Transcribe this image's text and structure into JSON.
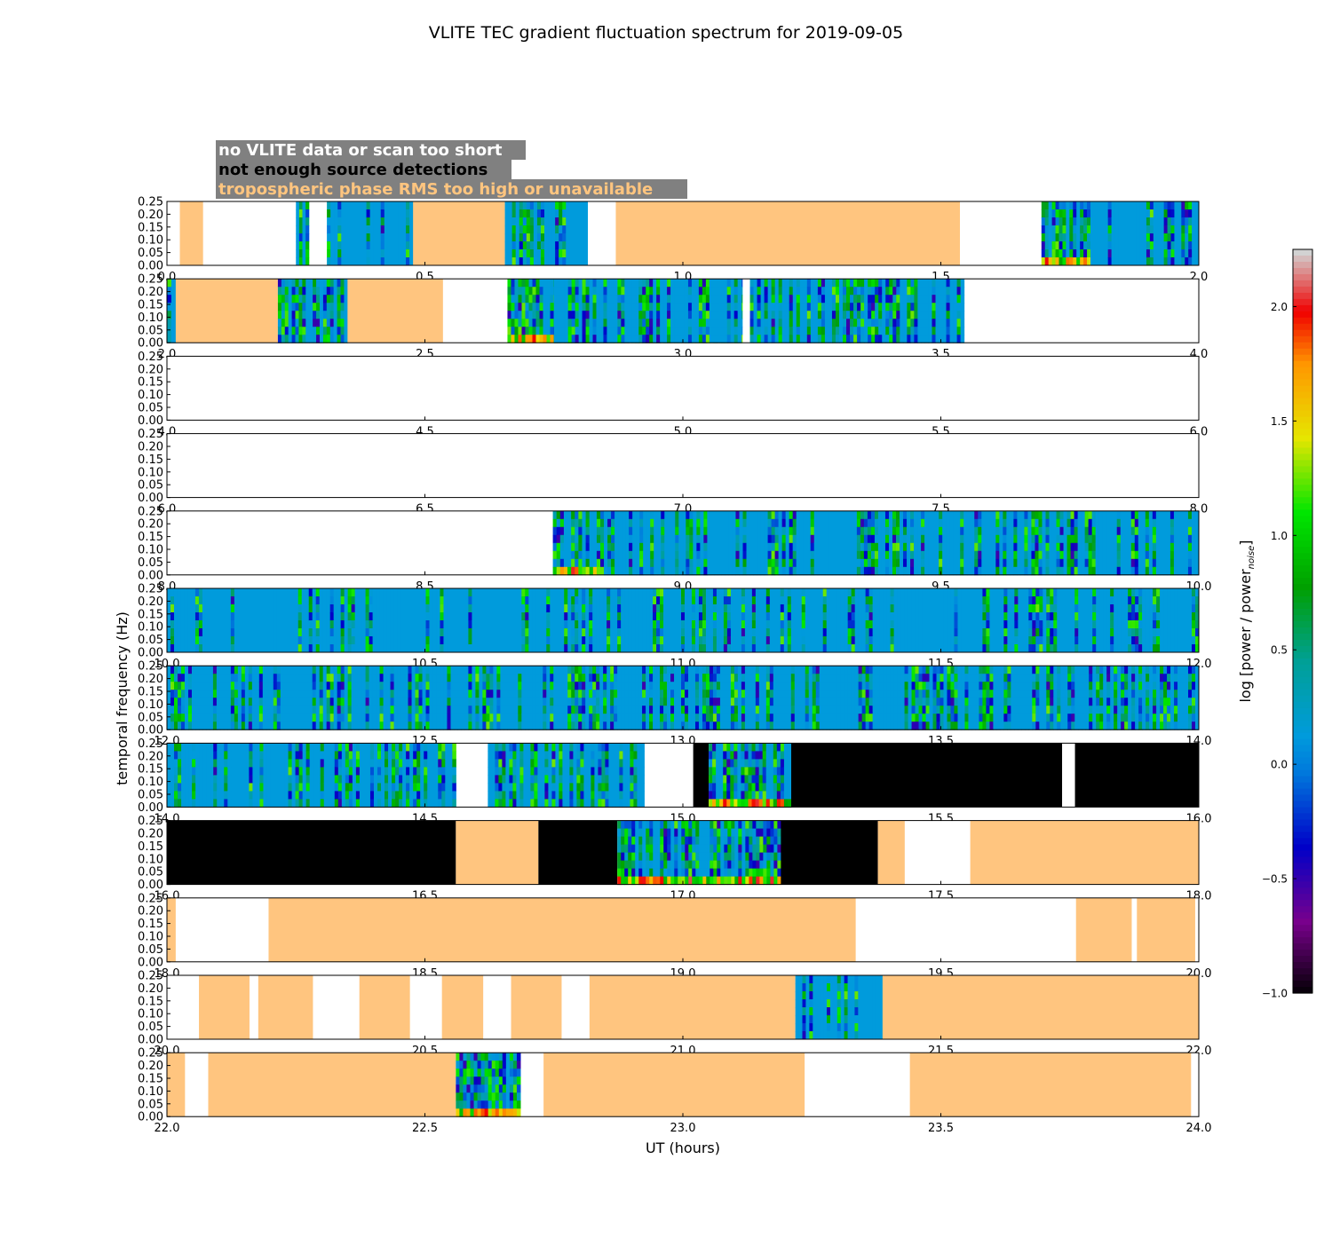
{
  "chart_data": {
    "type": "heatmap",
    "title": "VLITE TEC gradient fluctuation spectrum for 2019-09-05",
    "xlabel": "UT (hours)",
    "ylabel": "temporal frequency (Hz)",
    "colorbar": {
      "label_main": "log [power / power",
      "label_sub": "noise",
      "label_end": "]",
      "range": [
        -1.0,
        2.25
      ],
      "ticks": [
        "−1.0",
        "−0.5",
        "0.0",
        "0.5",
        "1.0",
        "1.5",
        "2.0"
      ],
      "tick_values": [
        -1.0,
        -0.5,
        0.0,
        0.5,
        1.0,
        1.5,
        2.0
      ],
      "colormap": "nipy_spectral"
    },
    "legend": [
      {
        "text": "no VLITE data or scan too short",
        "color": "#ffffff"
      },
      {
        "text": "not enough source detections",
        "color": "#000000"
      },
      {
        "text": "tropospheric phase RMS too high or unavailable",
        "color": "#ffc57f"
      }
    ],
    "legend_background": "#808080",
    "status_colors": {
      "no_data": "#ffffff",
      "few_detections": "#000000",
      "troposphere": "#ffc57f"
    },
    "ylim": [
      0.0,
      0.25
    ],
    "y_ticks": [
      "0.00",
      "0.05",
      "0.10",
      "0.15",
      "0.20",
      "0.25"
    ],
    "panels": [
      {
        "x_ticks": [
          "0.0",
          "0.5",
          "1.0",
          "1.5",
          "2.0"
        ],
        "xlim": [
          0,
          2
        ],
        "segments": [
          {
            "start": 0.025,
            "end": 0.07,
            "state": "troposphere"
          },
          {
            "start": 0.25,
            "end": 0.275,
            "state": "data",
            "activity": 0.5
          },
          {
            "start": 0.31,
            "end": 0.477,
            "state": "data",
            "activity": 0.3
          },
          {
            "start": 0.477,
            "end": 0.655,
            "state": "troposphere"
          },
          {
            "start": 0.655,
            "end": 0.815,
            "state": "data",
            "activity": 0.25
          },
          {
            "start": 0.87,
            "end": 1.537,
            "state": "troposphere"
          },
          {
            "start": 1.695,
            "end": 1.79,
            "state": "data",
            "activity": 0.9
          },
          {
            "start": 1.79,
            "end": 2.0,
            "state": "data",
            "activity": 0.5
          }
        ]
      },
      {
        "x_ticks": [
          "2.0",
          "2.5",
          "3.0",
          "3.5",
          "4.0"
        ],
        "xlim": [
          2,
          4
        ],
        "segments": [
          {
            "start": 2.0,
            "end": 2.017,
            "state": "data",
            "activity": 0.5
          },
          {
            "start": 2.017,
            "end": 2.215,
            "state": "troposphere"
          },
          {
            "start": 2.215,
            "end": 2.35,
            "state": "data",
            "activity": 0.55
          },
          {
            "start": 2.35,
            "end": 2.535,
            "state": "troposphere"
          },
          {
            "start": 2.66,
            "end": 3.115,
            "state": "data",
            "activity": 0.75
          },
          {
            "start": 3.115,
            "end": 3.113,
            "state": "data",
            "activity": 0.3
          },
          {
            "start": 2.75,
            "end": 3.113,
            "state": "data",
            "activity": 0.35
          },
          {
            "start": 3.13,
            "end": 3.545,
            "state": "data",
            "activity": 0.55
          }
        ]
      },
      {
        "x_ticks": [
          "4.0",
          "4.5",
          "5.0",
          "5.5",
          "6.0"
        ],
        "xlim": [
          4,
          6
        ],
        "segments": []
      },
      {
        "x_ticks": [
          "6.0",
          "6.5",
          "7.0",
          "7.5",
          "8.0"
        ],
        "xlim": [
          6,
          8
        ],
        "segments": []
      },
      {
        "x_ticks": [
          "8.0",
          "8.5",
          "9.0",
          "9.5",
          "10.0"
        ],
        "xlim": [
          8,
          10
        ],
        "segments": [
          {
            "start": 8.748,
            "end": 8.84,
            "state": "data",
            "activity": 0.8
          },
          {
            "start": 8.84,
            "end": 10.0,
            "state": "data",
            "activity": 0.3
          }
        ]
      },
      {
        "x_ticks": [
          "10.0",
          "10.5",
          "11.0",
          "11.5",
          "12.0"
        ],
        "xlim": [
          10,
          12
        ],
        "segments": [
          {
            "start": 10.0,
            "end": 12.0,
            "state": "data",
            "activity": 0.25
          }
        ]
      },
      {
        "x_ticks": [
          "12.0",
          "12.5",
          "13.0",
          "13.5",
          "14.0"
        ],
        "xlim": [
          12,
          14
        ],
        "segments": [
          {
            "start": 12.0,
            "end": 14.0,
            "state": "data",
            "activity": 0.35
          }
        ]
      },
      {
        "x_ticks": [
          "14.0",
          "14.5",
          "15.0",
          "15.5",
          "16.0"
        ],
        "xlim": [
          14,
          16
        ],
        "segments": [
          {
            "start": 14.0,
            "end": 14.56,
            "state": "data",
            "activity": 0.3
          },
          {
            "start": 14.622,
            "end": 14.925,
            "state": "data",
            "activity": 0.4
          },
          {
            "start": 15.02,
            "end": 15.05,
            "state": "few_detections"
          },
          {
            "start": 15.05,
            "end": 15.21,
            "state": "data",
            "activity": 0.8
          },
          {
            "start": 15.21,
            "end": 15.735,
            "state": "few_detections"
          },
          {
            "start": 15.76,
            "end": 16.0,
            "state": "few_detections"
          }
        ]
      },
      {
        "x_ticks": [
          "16.0",
          "16.5",
          "17.0",
          "17.5",
          "18.0"
        ],
        "xlim": [
          16,
          18
        ],
        "segments": [
          {
            "start": 16.0,
            "end": 16.56,
            "state": "few_detections"
          },
          {
            "start": 16.56,
            "end": 16.72,
            "state": "troposphere"
          },
          {
            "start": 16.72,
            "end": 16.873,
            "state": "few_detections"
          },
          {
            "start": 16.873,
            "end": 17.19,
            "state": "data",
            "activity": 0.85
          },
          {
            "start": 17.19,
            "end": 17.378,
            "state": "few_detections"
          },
          {
            "start": 17.378,
            "end": 17.43,
            "state": "troposphere"
          },
          {
            "start": 17.557,
            "end": 18.0,
            "state": "troposphere"
          }
        ]
      },
      {
        "x_ticks": [
          "18.0",
          "18.5",
          "19.0",
          "19.5",
          "20.0"
        ],
        "xlim": [
          18,
          20
        ],
        "segments": [
          {
            "start": 18.0,
            "end": 18.017,
            "state": "troposphere"
          },
          {
            "start": 18.197,
            "end": 19.335,
            "state": "troposphere"
          },
          {
            "start": 19.762,
            "end": 19.87,
            "state": "troposphere"
          },
          {
            "start": 19.88,
            "end": 19.993,
            "state": "troposphere"
          }
        ]
      },
      {
        "x_ticks": [
          "20.0",
          "20.5",
          "21.0",
          "21.5",
          "22.0"
        ],
        "xlim": [
          20,
          22
        ],
        "segments": [
          {
            "start": 20.062,
            "end": 20.16,
            "state": "troposphere"
          },
          {
            "start": 20.177,
            "end": 20.283,
            "state": "troposphere"
          },
          {
            "start": 20.373,
            "end": 20.471,
            "state": "troposphere"
          },
          {
            "start": 20.533,
            "end": 20.613,
            "state": "troposphere"
          },
          {
            "start": 20.667,
            "end": 20.765,
            "state": "troposphere"
          },
          {
            "start": 20.819,
            "end": 21.218,
            "state": "troposphere"
          },
          {
            "start": 21.218,
            "end": 21.387,
            "state": "data",
            "activity": 0.3
          },
          {
            "start": 21.387,
            "end": 22.0,
            "state": "troposphere"
          }
        ]
      },
      {
        "x_ticks": [
          "22.0",
          "22.5",
          "23.0",
          "23.5",
          "24.0"
        ],
        "xlim": [
          22,
          24
        ],
        "segments": [
          {
            "start": 22.0,
            "end": 22.035,
            "state": "troposphere"
          },
          {
            "start": 22.08,
            "end": 22.56,
            "state": "troposphere"
          },
          {
            "start": 22.56,
            "end": 22.685,
            "state": "data",
            "activity": 0.9
          },
          {
            "start": 22.73,
            "end": 23.236,
            "state": "troposphere"
          },
          {
            "start": 23.44,
            "end": 23.985,
            "state": "troposphere"
          }
        ]
      }
    ]
  }
}
